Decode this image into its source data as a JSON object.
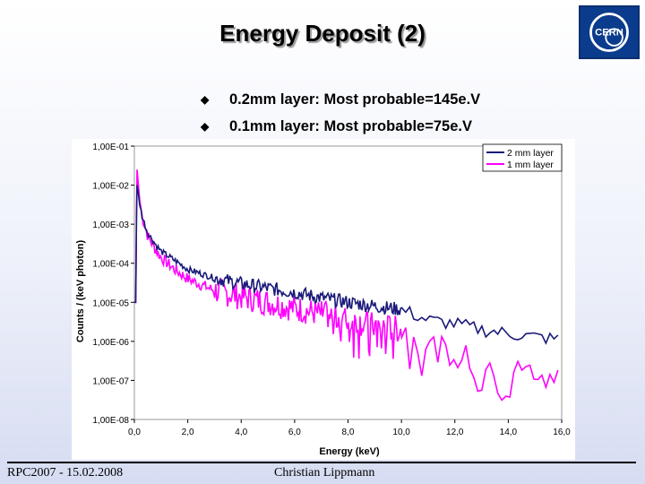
{
  "slide": {
    "title": "Energy Deposit (2)",
    "logo_text": "CERN",
    "bullets": [
      "0.2mm layer: Most probable=145e.V",
      "0.1mm layer: Most probable=75e.V"
    ],
    "footer_left": "RPC2007 - 15.02.2008",
    "footer_center": "Christian Lippmann"
  },
  "colors": {
    "series_2mm": "#1a1a7a",
    "series_1mm": "#ff00ff",
    "logo_bg": "#0b3b8c"
  },
  "chart_data": {
    "type": "line",
    "title": "",
    "xlabel": "Energy (keV)",
    "ylabel": "Counts / (keV photon)",
    "xlim": [
      0,
      16
    ],
    "ylim_log10": [
      -8,
      -1
    ],
    "x_ticks": [
      "0,0",
      "2,0",
      "4,0",
      "6,0",
      "8,0",
      "10,0",
      "12,0",
      "14,0",
      "16,0"
    ],
    "y_ticks": [
      "1,00E-01",
      "1,00E-02",
      "1,00E-03",
      "1,00E-04",
      "1,00E-05",
      "1,00E-06",
      "1,00E-07",
      "1,00E-08"
    ],
    "legend_position": "top-right",
    "series": [
      {
        "name": "2 mm layer",
        "x": [
          0.0,
          0.05,
          0.08,
          0.1,
          0.15,
          0.2,
          0.3,
          0.5,
          0.8,
          1.0,
          1.5,
          2.0,
          3.0,
          4.0,
          5.0,
          6.0,
          7.0,
          8.0,
          9.0,
          10.0,
          11.0,
          12.0,
          13.0,
          14.0,
          15.0,
          16.0
        ],
        "y": [
          1e-05,
          1e-05,
          0.0015,
          0.01,
          0.006,
          0.003,
          0.0015,
          0.0006,
          0.0003,
          0.0002,
          0.00012,
          7e-05,
          4.2e-05,
          3e-05,
          2.3e-05,
          1.8e-05,
          1.3e-05,
          1e-05,
          8e-06,
          6.5e-06,
          3.5e-06,
          2.8e-06,
          2e-06,
          1.6e-06,
          1.3e-06,
          1.1e-06
        ]
      },
      {
        "name": "1 mm layer",
        "x": [
          0.0,
          0.05,
          0.08,
          0.1,
          0.15,
          0.2,
          0.3,
          0.5,
          0.8,
          1.0,
          1.5,
          2.0,
          3.0,
          4.0,
          5.0,
          6.0,
          7.0,
          8.0,
          9.0,
          10.0,
          11.0,
          12.0,
          13.0,
          14.0,
          15.0,
          16.0
        ],
        "y": [
          1e-05,
          1e-05,
          0.002,
          0.025,
          0.01,
          0.004,
          0.0015,
          0.0005,
          0.00022,
          0.00014,
          7e-05,
          4e-05,
          2e-05,
          1.4e-05,
          1e-05,
          7e-06,
          5e-06,
          3.5e-06,
          2.5e-06,
          2e-06,
          8e-07,
          4.5e-07,
          3e-07,
          2e-07,
          1.6e-07,
          1.3e-07
        ]
      }
    ]
  }
}
